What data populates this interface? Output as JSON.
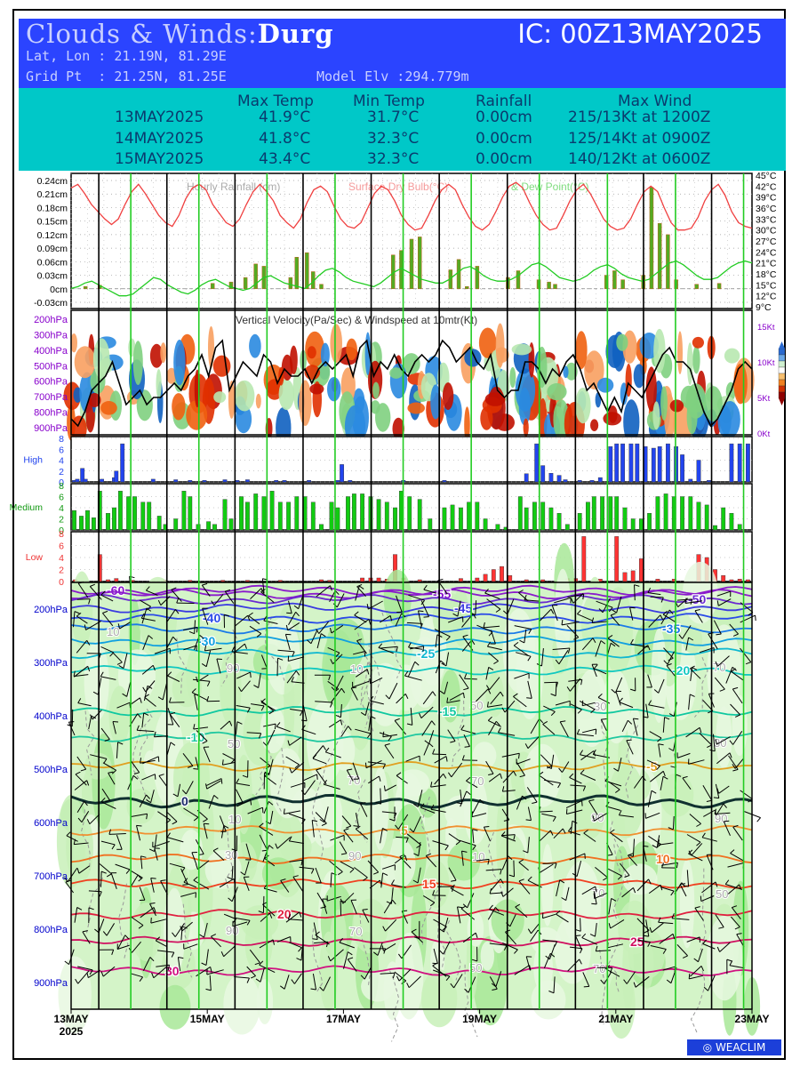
{
  "header": {
    "title_prefix": "Clouds & Winds:",
    "station": "Durg",
    "ic": "IC: 00Z13MAY2025",
    "latlon": "Lat, Lon : 21.19N, 81.29E",
    "gridpt": "Grid Pt  : 21.25N, 81.25E",
    "elev": "Model Elv :294.779m"
  },
  "stats": {
    "headers": [
      "Max Temp",
      "Min Temp",
      "Rainfall",
      "Max Wind"
    ],
    "rows": [
      {
        "date": "13MAY2025",
        "max": "41.9°C",
        "min": "31.7°C",
        "rain": "0.00cm",
        "wind": "215/13Kt at 1200Z"
      },
      {
        "date": "14MAY2025",
        "max": "41.8°C",
        "min": "32.3°C",
        "rain": "0.00cm",
        "wind": "125/14Kt at 0900Z"
      },
      {
        "date": "15MAY2025",
        "max": "43.4°C",
        "min": "32.3°C",
        "rain": "0.00cm",
        "wind": "140/12Kt at 0600Z"
      }
    ]
  },
  "logo": {
    "text": "WEACLIM"
  },
  "colors": {
    "rain": "#55aa22",
    "drybulb": "#f04040",
    "dewpoint": "#22cc22",
    "high": "#2244ee",
    "medium": "#11cc11",
    "low": "#ff3333",
    "contour_axis": "#0000cc",
    "vv_axis": "#8800cc"
  },
  "chart_data": [
    {
      "id": "meteogram",
      "type": "line",
      "legend": [
        "Hourly Rainfall (cm)",
        "Surface Dry Bulb(°C)",
        "& Dew Point(°C)"
      ],
      "left_ticks": [
        "0.24cm",
        "0.21cm",
        "0.18cm",
        "0.15cm",
        "0.12cm",
        "0.09cm",
        "0.06cm",
        "0.03cm",
        "0cm",
        "-0.03cm"
      ],
      "right_ticks": [
        "45°C",
        "42°C",
        "39°C",
        "36°C",
        "33°C",
        "30°C",
        "27°C",
        "24°C",
        "21°C",
        "18°C",
        "15°C",
        "12°C",
        "9°C"
      ],
      "rain_ylim": [
        -0.03,
        0.24
      ],
      "temp_ylim": [
        9,
        45
      ],
      "drybulb": [
        41.5,
        42.5,
        40,
        37,
        35,
        33,
        31.5,
        33,
        37,
        40.5,
        42.5,
        40,
        37,
        34,
        32,
        31,
        34,
        38.5,
        41.5,
        42.5,
        41,
        37,
        34.5,
        32,
        31,
        33,
        37,
        40.5,
        42.5,
        40.5,
        38,
        34,
        32,
        30.5,
        33,
        37.5,
        41,
        42,
        40.5,
        36.5,
        33,
        31,
        30.5,
        32,
        36,
        40,
        42,
        41,
        38,
        34,
        31.5,
        30,
        30.5,
        34,
        38,
        41,
        42.5,
        41,
        37,
        33.5,
        31,
        30,
        31.5,
        35,
        39,
        42,
        43,
        41.5,
        37.5,
        34,
        31.5,
        30,
        30.5,
        34,
        38,
        41,
        42.5,
        40,
        36.5,
        33,
        31,
        30,
        30.5,
        33,
        37,
        40.5,
        42,
        40.5,
        36,
        32,
        30,
        30,
        30.5,
        33.5,
        38,
        41,
        42.5,
        39.5,
        35,
        32,
        31,
        30.5
      ],
      "dewpoint": [
        14,
        14.5,
        15.5,
        16,
        15,
        14,
        13,
        12,
        12,
        12.5,
        14,
        15.5,
        17,
        16.5,
        15,
        14,
        13,
        12.5,
        13.5,
        15,
        16,
        16.5,
        15.5,
        14.5,
        14,
        13.5,
        14,
        15.5,
        17,
        17.5,
        16.5,
        15.5,
        15,
        14.5,
        14,
        15.5,
        17.5,
        19,
        19.5,
        18.5,
        17,
        16,
        15.5,
        15,
        14.5,
        15.5,
        17,
        18.5,
        19.5,
        18.5,
        17.5,
        16.5,
        16,
        15.5,
        15.5,
        16.5,
        18,
        19.5,
        20,
        19,
        17.5,
        16.5,
        16,
        16,
        16.5,
        17.5,
        19,
        20.5,
        21,
        20,
        18.5,
        17,
        16.5,
        16,
        16.5,
        17.5,
        19,
        20,
        20.5,
        19.5,
        18,
        17,
        16.5,
        16,
        16.5,
        18,
        19.5,
        21,
        21.5,
        20.5,
        19,
        17.5,
        16.5,
        16.5,
        17,
        18.5,
        20,
        21,
        21.5,
        21
      ],
      "rain_bars": [
        [
          7,
          0.005
        ],
        [
          14,
          0.008
        ],
        [
          69,
          0.012
        ],
        [
          78,
          0.015
        ],
        [
          85,
          0.025
        ],
        [
          90,
          0.055
        ],
        [
          94,
          0.05
        ],
        [
          107,
          0.025
        ],
        [
          110,
          0.07
        ],
        [
          115,
          0.08
        ],
        [
          118,
          0.038
        ],
        [
          122,
          0.01
        ],
        [
          157,
          0.075
        ],
        [
          161,
          0.085
        ],
        [
          166,
          0.11
        ],
        [
          170,
          0.115
        ],
        [
          185,
          0.042
        ],
        [
          189,
          0.065
        ],
        [
          193,
          0.005
        ],
        [
          198,
          0.05
        ],
        [
          213,
          0.025
        ],
        [
          218,
          0.04
        ],
        [
          228,
          0.02
        ],
        [
          233,
          0.015
        ],
        [
          236,
          0.01
        ],
        [
          261,
          0.03
        ],
        [
          265,
          0.04
        ],
        [
          269,
          0.02
        ],
        [
          279,
          0.03
        ],
        [
          283,
          0.225
        ],
        [
          287,
          0.145
        ],
        [
          291,
          0.12
        ],
        [
          295,
          0.02
        ],
        [
          305,
          0.01
        ],
        [
          316,
          0.012
        ]
      ]
    },
    {
      "id": "vertical-velocity",
      "type": "heatmap",
      "title": "Vertical Velocity(Pa/Sec) & Windspeed at 10mtr(Kt)",
      "y_ticks": [
        "200hPa",
        "300hPa",
        "400hPa",
        "500hPa",
        "600hPa",
        "700hPa",
        "800hPa",
        "900hPa"
      ],
      "right_ticks": [
        "15Kt",
        "10Kt",
        "5Kt",
        "0Kt"
      ],
      "windspeed_kt": [
        2,
        1,
        3,
        6,
        7,
        8,
        10,
        7,
        4,
        5,
        6,
        4,
        5,
        5,
        6,
        7,
        6,
        8,
        9,
        11,
        8,
        12,
        13,
        6,
        8,
        10,
        9,
        8,
        11,
        10,
        7,
        9,
        8,
        8,
        9,
        7,
        9,
        10,
        9,
        10,
        11,
        8,
        12,
        13,
        8,
        10,
        9,
        11,
        9,
        8,
        10,
        11,
        10,
        11,
        13,
        12,
        10,
        11,
        12,
        10,
        9,
        11,
        6,
        5,
        6,
        6,
        10,
        10,
        9,
        7,
        9,
        8,
        10,
        11,
        9,
        6,
        7,
        5,
        3,
        5,
        3,
        7,
        6,
        5,
        7,
        9,
        11,
        12,
        10,
        10,
        9,
        6,
        3,
        1,
        2,
        4,
        6,
        9,
        10,
        9
      ]
    },
    {
      "id": "high-cloud",
      "type": "bar",
      "label": "High",
      "y_ticks": [
        "0",
        "2",
        "4",
        "6",
        "8"
      ],
      "ylim": [
        0,
        8
      ],
      "bars": [
        [
          1.5,
          0.3
        ],
        [
          3,
          0.5
        ],
        [
          5.5,
          2.5
        ],
        [
          7,
          0.5
        ],
        [
          15,
          0.5
        ],
        [
          21,
          0.8
        ],
        [
          22,
          2
        ],
        [
          25,
          7
        ],
        [
          40,
          0.5
        ],
        [
          51,
          0.4
        ],
        [
          58,
          0.3
        ],
        [
          65,
          0.3
        ],
        [
          75,
          0.4
        ],
        [
          81,
          0.3
        ],
        [
          86,
          0.4
        ],
        [
          100,
          0.3
        ],
        [
          104,
          0.3
        ],
        [
          116,
          0.3
        ],
        [
          130,
          0.3
        ],
        [
          132,
          3.2
        ],
        [
          136,
          0.3
        ],
        [
          162,
          0.3
        ],
        [
          182,
          0.3
        ],
        [
          222,
          1.5
        ],
        [
          227,
          7
        ],
        [
          230,
          3
        ],
        [
          234,
          1.6
        ],
        [
          238,
          1.2
        ],
        [
          241,
          0.4
        ],
        [
          248,
          0.3
        ],
        [
          254,
          0.3
        ],
        [
          258,
          0.8
        ],
        [
          263,
          6.5
        ],
        [
          266,
          7
        ],
        [
          269,
          7
        ],
        [
          273,
          7
        ],
        [
          276,
          7
        ],
        [
          280,
          6.5
        ],
        [
          284,
          6.2
        ],
        [
          287,
          6.5
        ],
        [
          291,
          7
        ],
        [
          295,
          6.5
        ],
        [
          298,
          5
        ],
        [
          302,
          0.5
        ],
        [
          306,
          4
        ],
        [
          311,
          0.3
        ],
        [
          322,
          7
        ],
        [
          326,
          7
        ],
        [
          330,
          7
        ]
      ]
    },
    {
      "id": "medium-cloud",
      "type": "bar",
      "label": "Medium",
      "y_ticks": [
        "0",
        "2",
        "4",
        "6",
        "8"
      ],
      "ylim": [
        0,
        8
      ],
      "bars": [
        [
          1.5,
          3.5
        ],
        [
          5,
          2.5
        ],
        [
          8,
          3.5
        ],
        [
          11,
          2.2
        ],
        [
          14,
          7
        ],
        [
          18,
          3
        ],
        [
          21,
          4
        ],
        [
          24,
          7
        ],
        [
          28,
          6
        ],
        [
          31,
          6
        ],
        [
          35,
          5
        ],
        [
          38,
          5
        ],
        [
          43,
          2.5
        ],
        [
          46,
          1
        ],
        [
          51,
          2
        ],
        [
          55,
          7
        ],
        [
          58,
          6
        ],
        [
          62,
          1
        ],
        [
          67,
          1.5
        ],
        [
          70,
          1
        ],
        [
          75,
          5.5
        ],
        [
          78,
          2
        ],
        [
          83,
          6
        ],
        [
          86,
          5
        ],
        [
          90,
          6.5
        ],
        [
          94,
          6
        ],
        [
          98,
          7
        ],
        [
          102,
          5
        ],
        [
          106,
          5
        ],
        [
          110,
          6
        ],
        [
          114,
          6
        ],
        [
          118,
          5
        ],
        [
          122,
          1
        ],
        [
          127,
          5
        ],
        [
          130,
          4
        ],
        [
          135,
          6
        ],
        [
          138,
          6.5
        ],
        [
          142,
          6.5
        ],
        [
          146,
          6
        ],
        [
          150,
          5.5
        ],
        [
          154,
          5
        ],
        [
          158,
          4
        ],
        [
          161,
          7
        ],
        [
          165,
          6
        ],
        [
          170,
          5.5
        ],
        [
          175,
          2
        ],
        [
          182,
          4
        ],
        [
          186,
          4.5
        ],
        [
          190,
          4
        ],
        [
          194,
          5
        ],
        [
          198,
          5
        ],
        [
          202,
          2
        ],
        [
          208,
          1
        ],
        [
          212,
          0.5
        ],
        [
          219,
          6
        ],
        [
          222,
          4
        ],
        [
          226,
          5
        ],
        [
          230,
          5
        ],
        [
          234,
          4
        ],
        [
          238,
          3
        ],
        [
          242,
          1
        ],
        [
          248,
          3
        ],
        [
          252,
          5
        ],
        [
          255,
          6
        ],
        [
          259,
          6
        ],
        [
          263,
          6
        ],
        [
          266,
          6
        ],
        [
          270,
          4
        ],
        [
          274,
          2
        ],
        [
          278,
          2
        ],
        [
          282,
          3
        ],
        [
          286,
          6
        ],
        [
          290,
          6.5
        ],
        [
          294,
          6
        ],
        [
          298,
          6
        ],
        [
          302,
          6
        ],
        [
          306,
          5
        ],
        [
          310,
          4.5
        ],
        [
          314,
          0.8
        ],
        [
          318,
          4
        ],
        [
          322,
          3
        ],
        [
          326,
          1
        ]
      ]
    },
    {
      "id": "low-cloud",
      "type": "bar",
      "label": "Low",
      "y_ticks": [
        "0",
        "2",
        "4",
        "6",
        "8"
      ],
      "ylim": [
        0,
        8
      ],
      "bars": [
        [
          2,
          0.3
        ],
        [
          14,
          4.5
        ],
        [
          18,
          0.3
        ],
        [
          22,
          0.5
        ],
        [
          30,
          0.2
        ],
        [
          46,
          0.2
        ],
        [
          58,
          0.2
        ],
        [
          74,
          0.2
        ],
        [
          86,
          0.2
        ],
        [
          102,
          0.2
        ],
        [
          122,
          0.3
        ],
        [
          126,
          0.2
        ],
        [
          142,
          0.6
        ],
        [
          146,
          0.6
        ],
        [
          150,
          0.6
        ],
        [
          154,
          0.4
        ],
        [
          158,
          4.5
        ],
        [
          162,
          0.6
        ],
        [
          170,
          0.3
        ],
        [
          190,
          0.5
        ],
        [
          198,
          0.6
        ],
        [
          202,
          1.2
        ],
        [
          206,
          2
        ],
        [
          210,
          2.5
        ],
        [
          214,
          1
        ],
        [
          222,
          0.3
        ],
        [
          230,
          0.3
        ],
        [
          242,
          0.5
        ],
        [
          246,
          0.5
        ],
        [
          250,
          7.5
        ],
        [
          258,
          0.4
        ],
        [
          266,
          7.5
        ],
        [
          270,
          1.5
        ],
        [
          274,
          1.8
        ],
        [
          278,
          3.8
        ],
        [
          286,
          0.4
        ],
        [
          294,
          0.4
        ],
        [
          306,
          4.5
        ],
        [
          310,
          4
        ],
        [
          314,
          2
        ],
        [
          318,
          1
        ],
        [
          322,
          0.3
        ],
        [
          326,
          0.4
        ],
        [
          330,
          0.3
        ]
      ]
    },
    {
      "id": "temperature-rh-cross-section",
      "type": "line",
      "y_ticks": [
        "200hPa",
        "300hPa",
        "400hPa",
        "500hPa",
        "600hPa",
        "700hPa",
        "800hPa",
        "900hPa"
      ],
      "x_ticks": [
        "13MAY",
        "15MAY",
        "17MAY",
        "19MAY",
        "21MAY",
        "23MAY"
      ],
      "x_year": "2025",
      "isotherms": [
        {
          "value": -60,
          "p": 165,
          "color": "#8a1acc"
        },
        {
          "value": -55,
          "p": 172,
          "color": "#8a1acc"
        },
        {
          "value": -50,
          "p": 182,
          "color": "#6a2ad0"
        },
        {
          "value": -45,
          "p": 198,
          "color": "#3a3ae0"
        },
        {
          "value": -40,
          "p": 217,
          "color": "#2a4ae8"
        },
        {
          "value": -35,
          "p": 237,
          "color": "#1a7ae8"
        },
        {
          "value": -30,
          "p": 260,
          "color": "#10a0e0"
        },
        {
          "value": -25,
          "p": 283,
          "color": "#10b8d0"
        },
        {
          "value": -20,
          "p": 315,
          "color": "#10c8c0"
        },
        {
          "value": -15,
          "p": 392,
          "color": "#10c8a0"
        },
        {
          "value": -10,
          "p": 440,
          "color": "#20c8a0"
        },
        {
          "value": -5,
          "p": 495,
          "color": "#e0a020"
        },
        {
          "value": 0,
          "p": 560,
          "color": "#103030"
        },
        {
          "value": 5,
          "p": 615,
          "color": "#f09030"
        },
        {
          "value": 10,
          "p": 668,
          "color": "#f07020"
        },
        {
          "value": 15,
          "p": 715,
          "color": "#f04020"
        },
        {
          "value": 20,
          "p": 772,
          "color": "#e02040"
        },
        {
          "value": 25,
          "p": 823,
          "color": "#d01060"
        },
        {
          "value": 30,
          "p": 878,
          "color": "#d01080"
        }
      ],
      "rh_labels": [
        "10",
        "10",
        "10",
        "10",
        "30",
        "50",
        "50",
        "70",
        "70",
        "70",
        "90",
        "90",
        "90",
        "50",
        "70",
        "30",
        "90",
        "70",
        "50",
        "90",
        "70",
        "30"
      ]
    }
  ]
}
